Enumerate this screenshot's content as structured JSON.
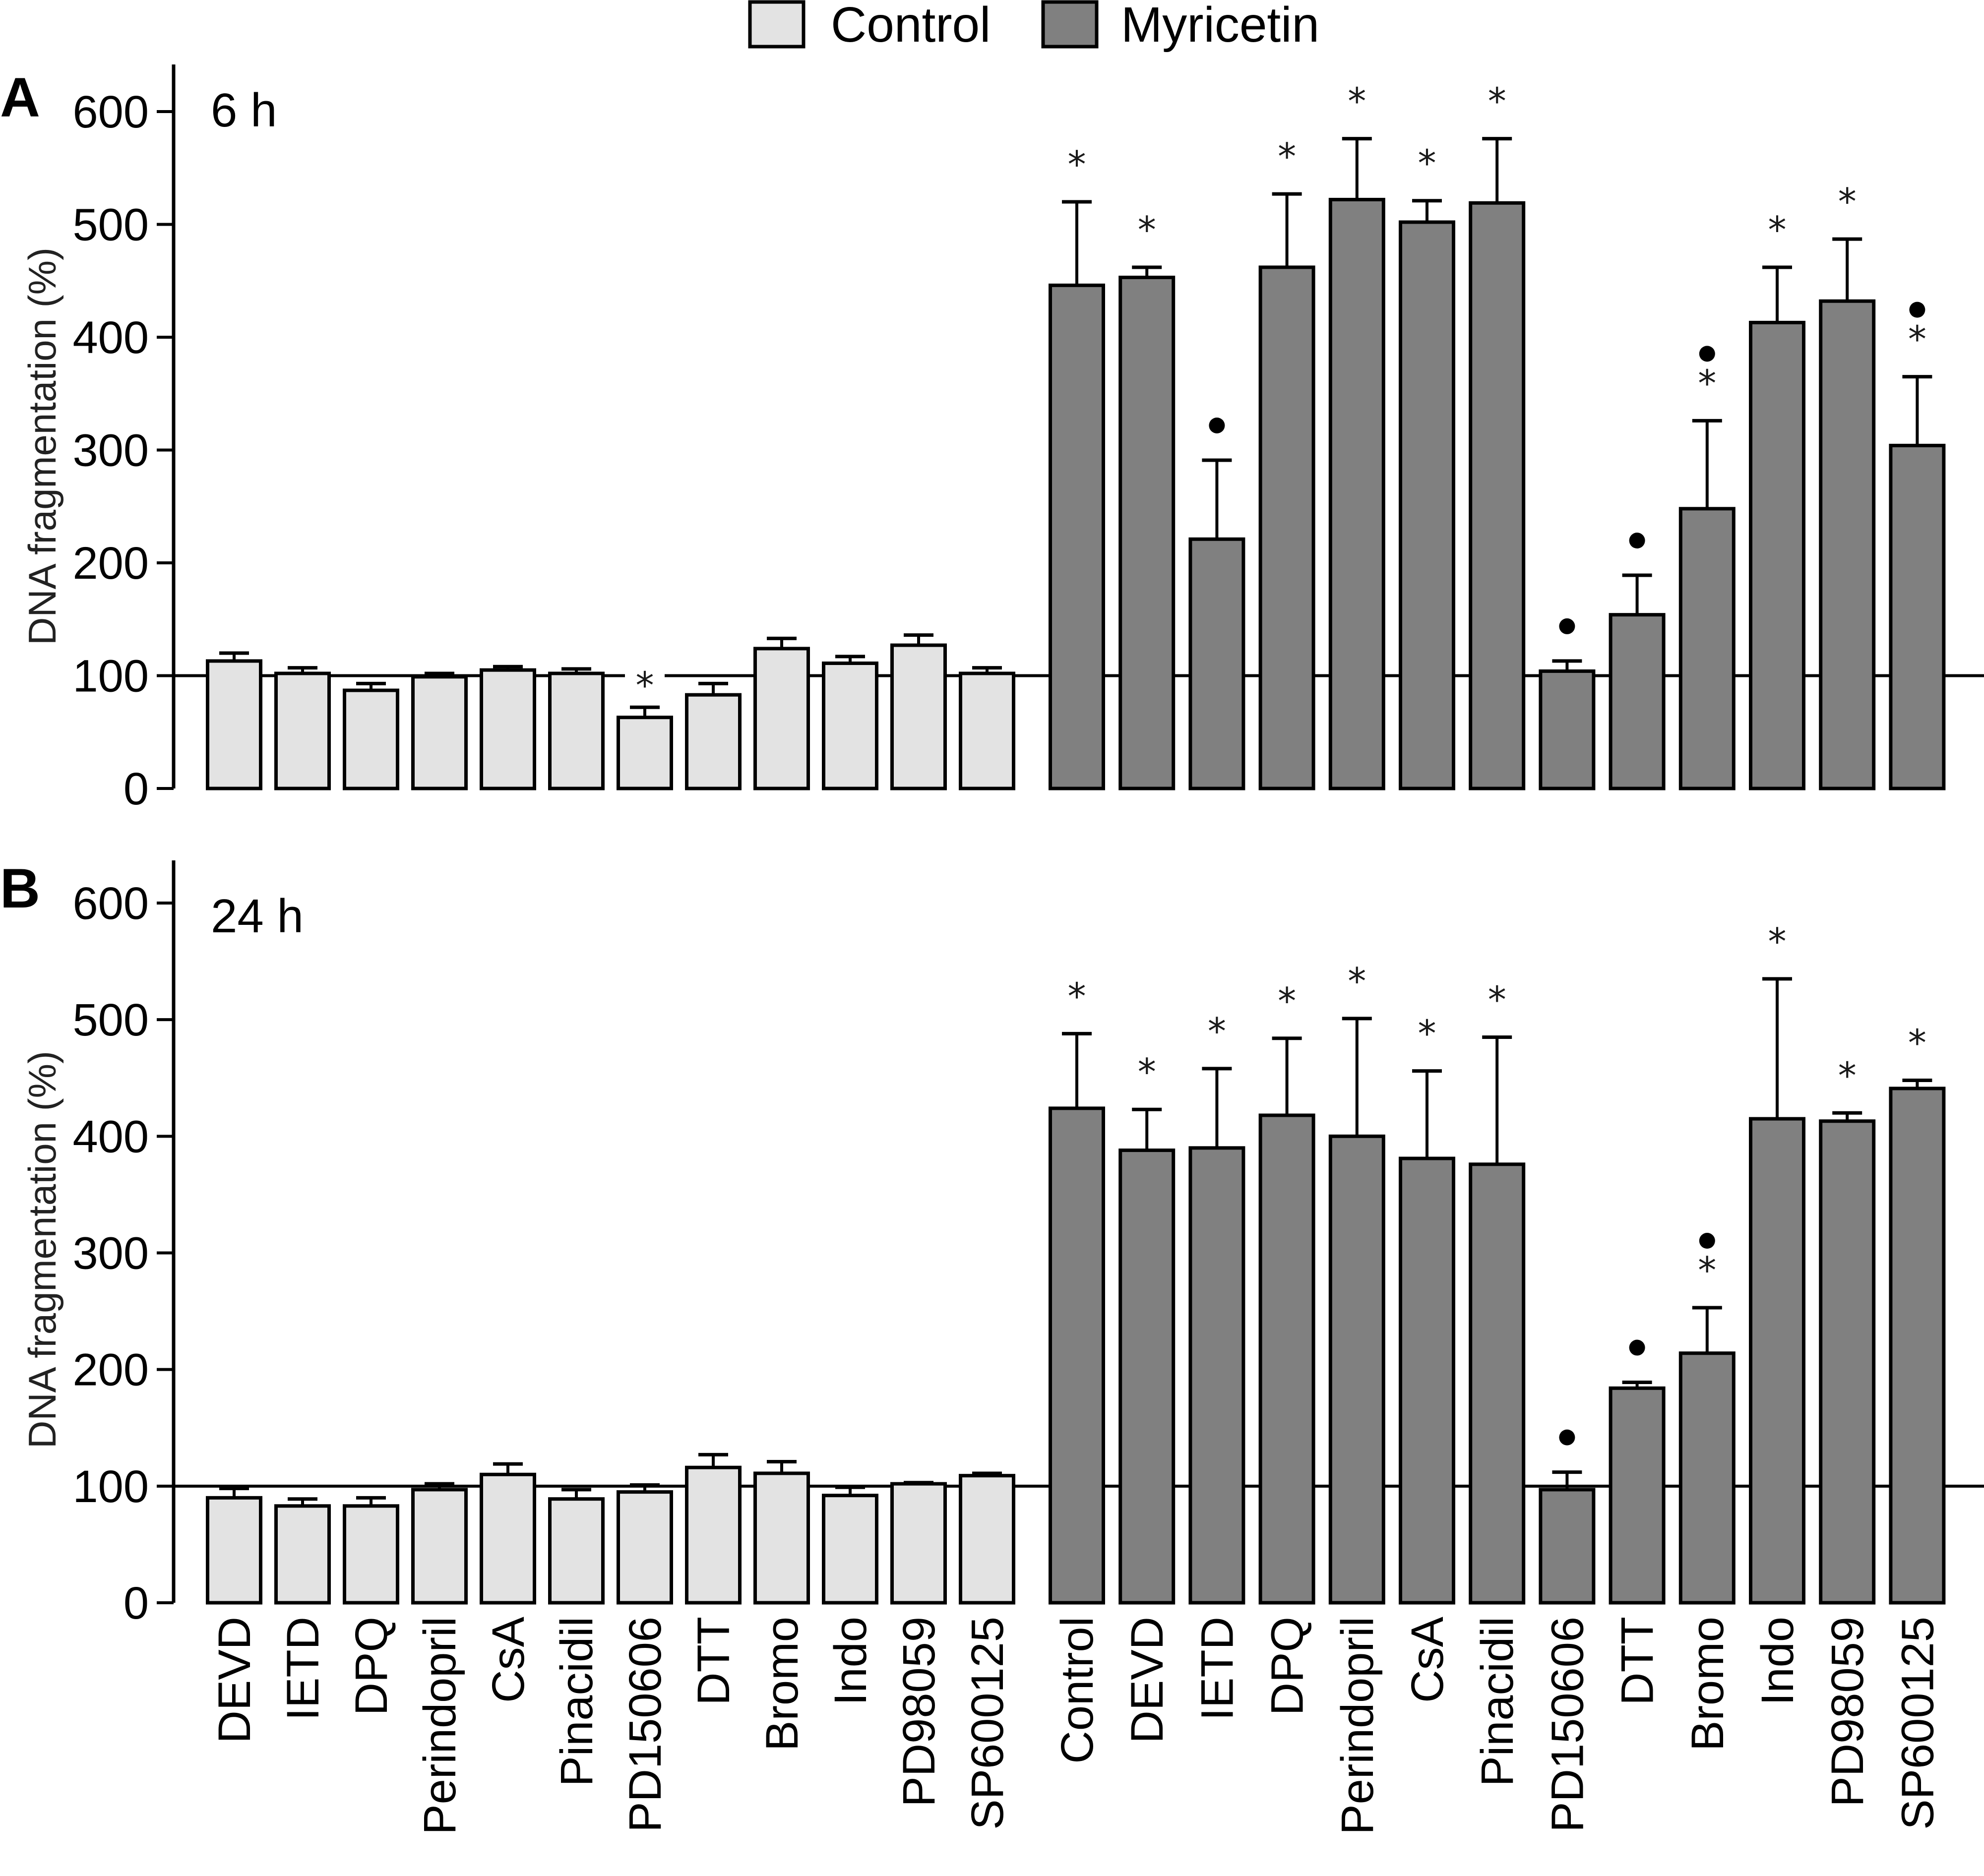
{
  "chart_data": {
    "type": "bar",
    "legend": {
      "position": "top-center",
      "entries": [
        {
          "name": "Control",
          "color": "#e3e3e3"
        },
        {
          "name": "Myricetin",
          "color": "#808080"
        }
      ]
    },
    "ylabel": "DNA fragmentation (%)",
    "ylim": [
      0,
      600
    ],
    "yticks": [
      0,
      100,
      200,
      300,
      400,
      500,
      600
    ],
    "reference_line": 100,
    "groups": {
      "Control": [
        "DEVD",
        "IETD",
        "DPQ",
        "Perindopril",
        "CsA",
        "Pinacidil",
        "PD150606",
        "DTT",
        "Bromo",
        "Indo",
        "PD98059",
        "SP600125"
      ],
      "Myricetin": [
        "Control",
        "DEVD",
        "IETD",
        "DPQ",
        "Perindopril",
        "CsA",
        "Pinacidil",
        "PD150606",
        "DTT",
        "Bromo",
        "Indo",
        "PD98059",
        "SP600125"
      ]
    },
    "marker_legend": {
      "star": "*",
      "dot": "●"
    },
    "panels": [
      {
        "letter": "A",
        "title": "6 h",
        "series": [
          {
            "name": "Control",
            "values": [
              113,
              102,
              87,
              99,
              105,
              102,
              63,
              83,
              124,
              111,
              127,
              102
            ],
            "error_upper": [
              120,
              107,
              93,
              102,
              108,
              106,
              72,
              93,
              133,
              117,
              136,
              107
            ],
            "markers": [
              "",
              "",
              "",
              "",
              "",
              "",
              "*",
              "",
              "",
              "",
              "",
              ""
            ]
          },
          {
            "name": "Myricetin",
            "values": [
              446,
              453,
              221,
              462,
              522,
              502,
              519,
              104,
              154,
              248,
              413,
              432,
              304
            ],
            "error_upper": [
              520,
              462,
              291,
              527,
              576,
              521,
              576,
              113,
              189,
              326,
              462,
              487,
              365
            ],
            "markers": [
              "*",
              "*",
              "●",
              "*",
              "*",
              "*",
              "*",
              "●",
              "●",
              "*●",
              "*",
              "*",
              "*●"
            ]
          }
        ]
      },
      {
        "letter": "B",
        "title": "24 h",
        "series": [
          {
            "name": "Control",
            "values": [
              90,
              83,
              83,
              97,
              110,
              89,
              95,
              116,
              111,
              92,
              102,
              109
            ],
            "error_upper": [
              98,
              89,
              90,
              102,
              119,
              97,
              101,
              127,
              121,
              99,
              103,
              111
            ],
            "markers": [
              "",
              "",
              "",
              "",
              "",
              "",
              "",
              "",
              "",
              "",
              "",
              ""
            ]
          },
          {
            "name": "Myricetin",
            "values": [
              424,
              388,
              390,
              418,
              400,
              381,
              376,
              97,
              184,
              214,
              415,
              413,
              441
            ],
            "error_upper": [
              488,
              423,
              458,
              484,
              501,
              456,
              485,
              112,
              189,
              253,
              535,
              420,
              448
            ],
            "markers": [
              "*",
              "*",
              "*",
              "*",
              "*",
              "*",
              "*",
              "●",
              "●",
              "*●",
              "*",
              "*",
              "*"
            ]
          }
        ]
      }
    ]
  }
}
